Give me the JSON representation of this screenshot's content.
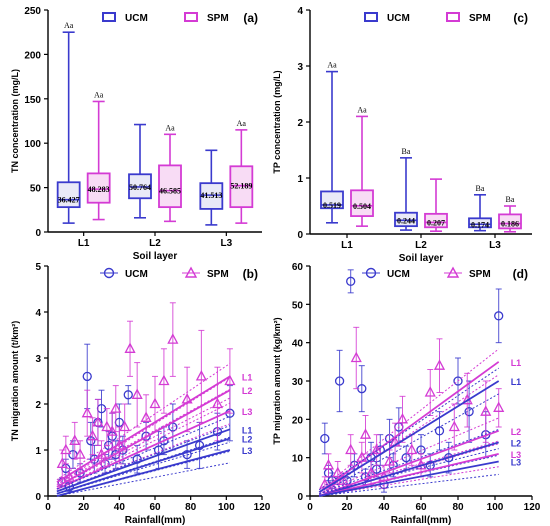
{
  "chart_data": [
    {
      "panel": "(a)",
      "type": "box",
      "ylabel": "TN concentration (mg/L)",
      "xlabel": "Soil layer",
      "ylim": [
        0,
        250
      ],
      "yticks": [
        "0",
        "50",
        "100",
        "150",
        "200",
        "250"
      ],
      "categories": [
        "L1",
        "L2",
        "L3"
      ],
      "legend": {
        "placement": "top",
        "entries": [
          "UCM",
          "SPM"
        ]
      },
      "series": [
        {
          "name": "UCM",
          "color": "#3a3acd",
          "boxes": [
            {
              "min": 10,
              "q1": 28,
              "median": 36.427,
              "q3": 56,
              "max": 225,
              "label": "36.427",
              "letters": "Aa"
            },
            {
              "min": 16,
              "q1": 38,
              "median": 50.764,
              "q3": 65,
              "max": 121,
              "label": "50.764",
              "letters": ""
            },
            {
              "min": 8,
              "q1": 26,
              "median": 41.513,
              "q3": 55,
              "max": 92,
              "label": "41.513",
              "letters": ""
            }
          ]
        },
        {
          "name": "SPM",
          "color": "#d43bd4",
          "boxes": [
            {
              "min": 14,
              "q1": 33,
              "median": 48.283,
              "q3": 66,
              "max": 147,
              "label": "48.283",
              "letters": "Aa"
            },
            {
              "min": 12,
              "q1": 28,
              "median": 46.585,
              "q3": 75,
              "max": 110,
              "label": "46.585",
              "letters": "Aa"
            },
            {
              "min": 10,
              "q1": 28,
              "median": 52.189,
              "q3": 74,
              "max": 115,
              "label": "52.189",
              "letters": "Aa"
            }
          ]
        }
      ]
    },
    {
      "panel": "(c)",
      "type": "box",
      "ylabel": "TP concentration (mg/L)",
      "xlabel": "Soil layer",
      "ylim": [
        0,
        4
      ],
      "yticks": [
        "0",
        "1",
        "2",
        "3",
        "4"
      ],
      "categories": [
        "L1",
        "L2",
        "L3"
      ],
      "legend": {
        "placement": "top",
        "entries": [
          "UCM",
          "SPM"
        ]
      },
      "series": [
        {
          "name": "UCM",
          "color": "#3a3acd",
          "boxes": [
            {
              "min": 0.2,
              "q1": 0.46,
              "median": 0.519,
              "q3": 0.76,
              "max": 2.9,
              "label": "0.519",
              "letters": "Aa"
            },
            {
              "min": 0.07,
              "q1": 0.14,
              "median": 0.244,
              "q3": 0.38,
              "max": 1.36,
              "label": "0.244",
              "letters": "Ba"
            },
            {
              "min": 0.06,
              "q1": 0.12,
              "median": 0.174,
              "q3": 0.28,
              "max": 0.7,
              "label": "0.174",
              "letters": "Ba"
            }
          ]
        },
        {
          "name": "SPM",
          "color": "#d43bd4",
          "boxes": [
            {
              "min": 0.14,
              "q1": 0.32,
              "median": 0.504,
              "q3": 0.78,
              "max": 2.1,
              "label": "0.504",
              "letters": "Aa"
            },
            {
              "min": 0.05,
              "q1": 0.12,
              "median": 0.207,
              "q3": 0.36,
              "max": 0.98,
              "label": "0.207",
              "letters": ""
            },
            {
              "min": 0.04,
              "q1": 0.1,
              "median": 0.186,
              "q3": 0.35,
              "max": 0.5,
              "label": "0.186",
              "letters": "Ba"
            }
          ]
        }
      ]
    },
    {
      "panel": "(b)",
      "type": "scatter",
      "ylabel": "TN migration amount (t/km²)",
      "xlabel": "Rainfall(mm)",
      "xlim": [
        0,
        120
      ],
      "xticks": [
        "0",
        "20",
        "40",
        "60",
        "80",
        "100",
        "120"
      ],
      "ylim": [
        0,
        5
      ],
      "yticks": [
        "0",
        "1",
        "2",
        "3",
        "4",
        "5"
      ],
      "legend": {
        "placement": "top",
        "entries": [
          "UCM",
          "SPM"
        ]
      },
      "series": [
        {
          "name": "UCM",
          "color": "#3a3acd",
          "marker": "circle",
          "points": [
            [
              8,
              0.3,
              0.1
            ],
            [
              10,
              0.6,
              0.2
            ],
            [
              12,
              0.2,
              0.1
            ],
            [
              14,
              0.9,
              0.3
            ],
            [
              18,
              0.5,
              0.2
            ],
            [
              22,
              2.6,
              0.7
            ],
            [
              24,
              1.2,
              0.4
            ],
            [
              26,
              0.8,
              0.3
            ],
            [
              28,
              1.6,
              0.5
            ],
            [
              30,
              1.9,
              0.4
            ],
            [
              32,
              0.7,
              0.2
            ],
            [
              34,
              1.1,
              0.3
            ],
            [
              36,
              1.3,
              0.5
            ],
            [
              38,
              0.9,
              0.3
            ],
            [
              40,
              1.6,
              0.4
            ],
            [
              42,
              1.0,
              0.3
            ],
            [
              45,
              2.2,
              0.2
            ],
            [
              50,
              0.8,
              0.3
            ],
            [
              55,
              1.3,
              0.3
            ],
            [
              62,
              1.0,
              0.4
            ],
            [
              65,
              1.2,
              0.3
            ],
            [
              70,
              1.5,
              0.5
            ],
            [
              78,
              0.9,
              0.3
            ],
            [
              85,
              1.1,
              0.5
            ],
            [
              95,
              1.4,
              0.4
            ],
            [
              102,
              1.8,
              0.6
            ]
          ]
        },
        {
          "name": "SPM",
          "color": "#d43bd4",
          "marker": "triangle",
          "points": [
            [
              8,
              0.7,
              0.3
            ],
            [
              10,
              1.0,
              0.3
            ],
            [
              12,
              0.4,
              0.2
            ],
            [
              15,
              1.2,
              0.4
            ],
            [
              18,
              0.9,
              0.3
            ],
            [
              22,
              1.8,
              0.5
            ],
            [
              25,
              1.3,
              0.4
            ],
            [
              28,
              1.6,
              0.5
            ],
            [
              30,
              0.9,
              0.3
            ],
            [
              33,
              1.5,
              0.4
            ],
            [
              36,
              1.4,
              0.4
            ],
            [
              38,
              1.9,
              0.5
            ],
            [
              40,
              1.1,
              0.4
            ],
            [
              43,
              1.5,
              0.5
            ],
            [
              46,
              3.2,
              0.6
            ],
            [
              50,
              2.2,
              0.7
            ],
            [
              55,
              1.7,
              0.5
            ],
            [
              60,
              2.0,
              0.6
            ],
            [
              65,
              2.5,
              0.7
            ],
            [
              70,
              3.4,
              0.8
            ],
            [
              78,
              2.1,
              0.7
            ],
            [
              86,
              2.6,
              1.0
            ],
            [
              95,
              2.0,
              0.8
            ],
            [
              102,
              2.5,
              0.7
            ]
          ]
        }
      ],
      "fit_lines": [
        {
          "series": "SPM",
          "label": "L1",
          "x": [
            5,
            102
          ],
          "y": [
            0.3,
            2.6
          ]
        },
        {
          "series": "SPM",
          "label": "L2",
          "x": [
            5,
            102
          ],
          "y": [
            0.2,
            2.3
          ]
        },
        {
          "series": "SPM",
          "label": "L3",
          "x": [
            5,
            102
          ],
          "y": [
            0.15,
            1.85
          ]
        },
        {
          "series": "UCM",
          "label": "L1",
          "x": [
            5,
            102
          ],
          "y": [
            0.1,
            1.45
          ]
        },
        {
          "series": "UCM",
          "label": "L2",
          "x": [
            5,
            102
          ],
          "y": [
            0.05,
            1.25
          ]
        },
        {
          "series": "UCM",
          "label": "L3",
          "x": [
            5,
            102
          ],
          "y": [
            0.0,
            1.0
          ]
        }
      ]
    },
    {
      "panel": "(d)",
      "type": "scatter",
      "ylabel": "TP migration amount (kg/km²)",
      "xlabel": "Rainfall(mm)",
      "xlim": [
        0,
        120
      ],
      "xticks": [
        "0",
        "20",
        "40",
        "60",
        "80",
        "100",
        "120"
      ],
      "ylim": [
        0,
        60
      ],
      "yticks": [
        "0",
        "10",
        "20",
        "30",
        "40",
        "50",
        "60"
      ],
      "legend": {
        "placement": "top",
        "entries": [
          "UCM",
          "SPM"
        ]
      },
      "series": [
        {
          "name": "UCM",
          "color": "#3a3acd",
          "marker": "circle",
          "points": [
            [
              8,
              15,
              4
            ],
            [
              10,
              6,
              2
            ],
            [
              12,
              4,
              2
            ],
            [
              16,
              30,
              8
            ],
            [
              20,
              4,
              2
            ],
            [
              22,
              56,
              3
            ],
            [
              24,
              8,
              3
            ],
            [
              28,
              28,
              6
            ],
            [
              30,
              5,
              2
            ],
            [
              33,
              10,
              4
            ],
            [
              36,
              7,
              2
            ],
            [
              38,
              12,
              4
            ],
            [
              40,
              3,
              2
            ],
            [
              43,
              15,
              5
            ],
            [
              45,
              8,
              3
            ],
            [
              48,
              18,
              5
            ],
            [
              52,
              10,
              3
            ],
            [
              60,
              12,
              4
            ],
            [
              65,
              8,
              3
            ],
            [
              70,
              17,
              5
            ],
            [
              75,
              10,
              4
            ],
            [
              80,
              30,
              6
            ],
            [
              86,
              22,
              8
            ],
            [
              95,
              16,
              6
            ],
            [
              102,
              47,
              7
            ]
          ]
        },
        {
          "name": "SPM",
          "color": "#d43bd4",
          "marker": "triangle",
          "points": [
            [
              8,
              3,
              2
            ],
            [
              10,
              8,
              3
            ],
            [
              12,
              2,
              1
            ],
            [
              15,
              6,
              3
            ],
            [
              18,
              4,
              2
            ],
            [
              22,
              12,
              4
            ],
            [
              25,
              36,
              8
            ],
            [
              28,
              10,
              4
            ],
            [
              30,
              16,
              5
            ],
            [
              33,
              6,
              3
            ],
            [
              36,
              12,
              4
            ],
            [
              40,
              5,
              3
            ],
            [
              43,
              9,
              3
            ],
            [
              46,
              14,
              5
            ],
            [
              50,
              20,
              6
            ],
            [
              55,
              12,
              4
            ],
            [
              60,
              8,
              3
            ],
            [
              65,
              27,
              6
            ],
            [
              70,
              34,
              7
            ],
            [
              78,
              18,
              6
            ],
            [
              85,
              25,
              7
            ],
            [
              95,
              22,
              8
            ],
            [
              102,
              23,
              5
            ]
          ]
        }
      ],
      "fit_lines": [
        {
          "series": "SPM",
          "label": "L1",
          "x": [
            5,
            102
          ],
          "y": [
            1,
            35
          ]
        },
        {
          "series": "UCM",
          "label": "L1",
          "x": [
            5,
            102
          ],
          "y": [
            1,
            30
          ]
        },
        {
          "series": "SPM",
          "label": "L2",
          "x": [
            5,
            102
          ],
          "y": [
            0,
            17
          ]
        },
        {
          "series": "UCM",
          "label": "L2",
          "x": [
            5,
            102
          ],
          "y": [
            0,
            14
          ]
        },
        {
          "series": "SPM",
          "label": "L3",
          "x": [
            5,
            102
          ],
          "y": [
            0,
            11
          ]
        },
        {
          "series": "UCM",
          "label": "L3",
          "x": [
            5,
            102
          ],
          "y": [
            0,
            9
          ]
        }
      ]
    }
  ]
}
